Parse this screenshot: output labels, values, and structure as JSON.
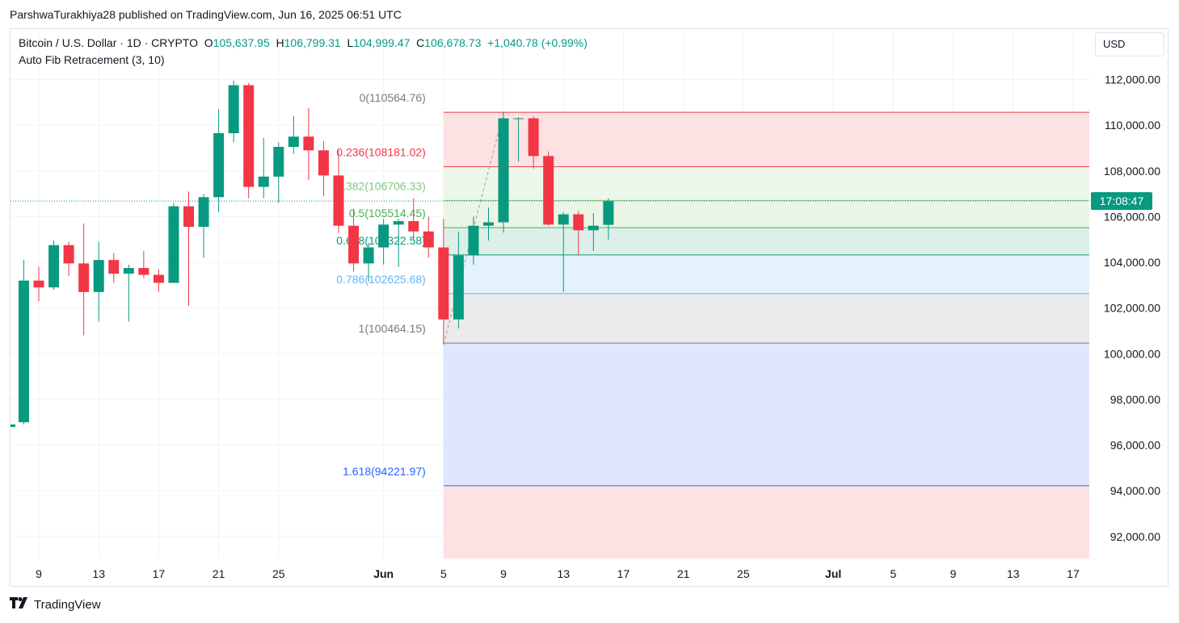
{
  "header": "ParshwaTurakhiya28 published on TradingView.com, Jun 16, 2025 06:51 UTC",
  "legend": {
    "symbol": "Bitcoin / U.S. Dollar · 1D · CRYPTO",
    "o_label": "O",
    "o": "105,637.95",
    "h_label": "H",
    "h": "106,799.31",
    "l_label": "L",
    "l": "104,999.47",
    "c_label": "C",
    "c": "106,678.73",
    "change": "+1,040.78 (+0.99%)",
    "indicator": "Auto Fib Retracement (3, 10)"
  },
  "currency_button": "USD",
  "footer": {
    "brand": "TradingView"
  },
  "colors": {
    "up": "#089981",
    "down": "#f23645",
    "grid": "#f0f3fa"
  },
  "chart_data": {
    "type": "candlestick",
    "ylim": [
      91000,
      113000
    ],
    "y_ticks": [
      112000,
      110000,
      108000,
      106000,
      104000,
      102000,
      100000,
      98000,
      96000,
      94000,
      92000
    ],
    "y_tick_labels": [
      "112,000.00",
      "110,000.00",
      "108,000.00",
      "106,000.00",
      "104,000.00",
      "102,000.00",
      "100,000.00",
      "98,000.00",
      "96,000.00",
      "94,000.00",
      "92,000.00"
    ],
    "x_ticks": [
      {
        "date": "2025-05-09",
        "label": "9"
      },
      {
        "date": "2025-05-13",
        "label": "13"
      },
      {
        "date": "2025-05-17",
        "label": "17"
      },
      {
        "date": "2025-05-21",
        "label": "21"
      },
      {
        "date": "2025-05-25",
        "label": "25"
      },
      {
        "date": "2025-06-01",
        "label": "Jun",
        "bold": true
      },
      {
        "date": "2025-06-05",
        "label": "5"
      },
      {
        "date": "2025-06-09",
        "label": "9"
      },
      {
        "date": "2025-06-13",
        "label": "13"
      },
      {
        "date": "2025-06-17",
        "label": "17"
      },
      {
        "date": "2025-06-21",
        "label": "21"
      },
      {
        "date": "2025-06-25",
        "label": "25"
      },
      {
        "date": "2025-07-01",
        "label": "Jul",
        "bold": true
      },
      {
        "date": "2025-07-05",
        "label": "5"
      },
      {
        "date": "2025-07-09",
        "label": "9"
      },
      {
        "date": "2025-07-13",
        "label": "13"
      },
      {
        "date": "2025-07-17",
        "label": "17"
      }
    ],
    "price_tag": "17:08:47",
    "last_price": 106678.73,
    "candles": [
      {
        "d": "2025-05-08",
        "o": 97000,
        "h": 104100,
        "l": 96900,
        "c": 103200
      },
      {
        "d": "2025-05-09",
        "o": 103200,
        "h": 103800,
        "l": 102300,
        "c": 102900
      },
      {
        "d": "2025-05-10",
        "o": 102900,
        "h": 104950,
        "l": 102800,
        "c": 104750
      },
      {
        "d": "2025-05-11",
        "o": 104750,
        "h": 104900,
        "l": 103400,
        "c": 103950
      },
      {
        "d": "2025-05-12",
        "o": 103950,
        "h": 105700,
        "l": 100800,
        "c": 102700
      },
      {
        "d": "2025-05-13",
        "o": 102700,
        "h": 104900,
        "l": 101400,
        "c": 104100
      },
      {
        "d": "2025-05-14",
        "o": 104100,
        "h": 104400,
        "l": 103100,
        "c": 103500
      },
      {
        "d": "2025-05-15",
        "o": 103500,
        "h": 103900,
        "l": 101400,
        "c": 103750
      },
      {
        "d": "2025-05-16",
        "o": 103750,
        "h": 104500,
        "l": 103300,
        "c": 103450
      },
      {
        "d": "2025-05-17",
        "o": 103450,
        "h": 103700,
        "l": 102700,
        "c": 103100
      },
      {
        "d": "2025-05-18",
        "o": 103100,
        "h": 106600,
        "l": 103100,
        "c": 106450
      },
      {
        "d": "2025-05-19",
        "o": 106450,
        "h": 107100,
        "l": 102100,
        "c": 105550
      },
      {
        "d": "2025-05-20",
        "o": 105550,
        "h": 107000,
        "l": 104200,
        "c": 106850
      },
      {
        "d": "2025-05-21",
        "o": 106850,
        "h": 110700,
        "l": 106200,
        "c": 109650
      },
      {
        "d": "2025-05-22",
        "o": 109650,
        "h": 111950,
        "l": 109250,
        "c": 111750
      },
      {
        "d": "2025-05-23",
        "o": 111750,
        "h": 111850,
        "l": 106800,
        "c": 107300
      },
      {
        "d": "2025-05-24",
        "o": 107300,
        "h": 109450,
        "l": 106800,
        "c": 107750
      },
      {
        "d": "2025-05-25",
        "o": 107750,
        "h": 109250,
        "l": 106600,
        "c": 109050
      },
      {
        "d": "2025-05-26",
        "o": 109050,
        "h": 110400,
        "l": 108750,
        "c": 109500
      },
      {
        "d": "2025-05-27",
        "o": 109500,
        "h": 110750,
        "l": 107600,
        "c": 108900
      },
      {
        "d": "2025-05-28",
        "o": 108900,
        "h": 109300,
        "l": 106900,
        "c": 107800
      },
      {
        "d": "2025-05-29",
        "o": 107800,
        "h": 108900,
        "l": 105300,
        "c": 105600
      },
      {
        "d": "2025-05-30",
        "o": 105600,
        "h": 106350,
        "l": 103600,
        "c": 103950
      },
      {
        "d": "2025-05-31",
        "o": 103950,
        "h": 104850,
        "l": 103150,
        "c": 104650
      },
      {
        "d": "2025-06-01",
        "o": 104650,
        "h": 105900,
        "l": 103900,
        "c": 105650
      },
      {
        "d": "2025-06-02",
        "o": 105650,
        "h": 105900,
        "l": 103800,
        "c": 105800
      },
      {
        "d": "2025-06-03",
        "o": 105800,
        "h": 106800,
        "l": 104950,
        "c": 105350
      },
      {
        "d": "2025-06-04",
        "o": 105350,
        "h": 106000,
        "l": 104200,
        "c": 104650
      },
      {
        "d": "2025-06-05",
        "o": 104650,
        "h": 105900,
        "l": 100400,
        "c": 101500
      },
      {
        "d": "2025-06-06",
        "o": 101500,
        "h": 105350,
        "l": 101100,
        "c": 104300
      },
      {
        "d": "2025-06-07",
        "o": 104300,
        "h": 106000,
        "l": 103900,
        "c": 105600
      },
      {
        "d": "2025-06-08",
        "o": 105600,
        "h": 106400,
        "l": 104950,
        "c": 105750
      },
      {
        "d": "2025-06-09",
        "o": 105750,
        "h": 110550,
        "l": 105300,
        "c": 110300
      },
      {
        "d": "2025-06-10",
        "o": 110300,
        "h": 110350,
        "l": 108400,
        "c": 110300
      },
      {
        "d": "2025-06-11",
        "o": 110300,
        "h": 110400,
        "l": 108100,
        "c": 108650
      },
      {
        "d": "2025-06-12",
        "o": 108650,
        "h": 108850,
        "l": 105600,
        "c": 105650
      },
      {
        "d": "2025-06-13",
        "o": 105650,
        "h": 106200,
        "l": 102700,
        "c": 106100
      },
      {
        "d": "2025-06-14",
        "o": 106100,
        "h": 106250,
        "l": 104300,
        "c": 105400
      },
      {
        "d": "2025-06-15",
        "o": 105400,
        "h": 106150,
        "l": 104500,
        "c": 105600
      },
      {
        "d": "2025-06-16",
        "o": 105637.95,
        "h": 106799.31,
        "l": 104999.47,
        "c": 106678.73
      }
    ],
    "fib_levels": [
      {
        "ratio": "0",
        "price": 110564.76,
        "label": "0(110564.76)",
        "color": "#f23645",
        "label_color": "#787b86",
        "fill": "#fde2e4"
      },
      {
        "ratio": "0.236",
        "price": 108181.02,
        "label": "0.236(108181.02)",
        "color": "#f23645",
        "label_color": "#f23645",
        "fill": "#edf6ea"
      },
      {
        "ratio": "0.382",
        "price": 106706.33,
        "label": "0.382(106706.33)",
        "color": "#81c784",
        "label_color": "#81c784",
        "fill": "#eaf5e6"
      },
      {
        "ratio": "0.5",
        "price": 105514.45,
        "label": "0.5(105514.45)",
        "color": "#4caf50",
        "label_color": "#4caf50",
        "fill": "#dcefe9"
      },
      {
        "ratio": "0.618",
        "price": 104322.58,
        "label": "0.618(104322.58)",
        "color": "#089981",
        "label_color": "#089981",
        "fill": "#e3f2fd"
      },
      {
        "ratio": "0.786",
        "price": 102625.68,
        "label": "0.786(102625.68)",
        "color": "#64b5f6",
        "label_color": "#64b5f6",
        "fill": "#ebebeb"
      },
      {
        "ratio": "1",
        "price": 100464.15,
        "label": "1(100464.15)",
        "color": "#787b86",
        "label_color": "#787b86",
        "fill": "#e0e6fd"
      },
      {
        "ratio": "1.618",
        "price": 94221.97,
        "label": "1.618(94221.97)",
        "color": "#2962ff",
        "label_color": "#2962ff",
        "fill": "#fde2e4"
      }
    ],
    "fib_start_date": "2025-06-05",
    "trend_line": [
      {
        "d": "2025-06-05",
        "price": 100400
      },
      {
        "d": "2025-06-09",
        "price": 110550
      }
    ]
  }
}
